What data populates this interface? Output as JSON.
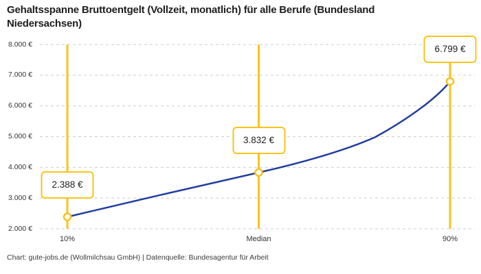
{
  "title": "Gehaltsspanne Bruttoentgelt (Vollzeit, monatlich) für alle Berufe (Bundesland Niedersachsen)",
  "footer": "Chart: gute-jobs.de (Wollmilchsau GmbH) | Datenquelle: Bundesagentur für Arbeit",
  "colors": {
    "accent_yellow": "#F9C31B",
    "line_blue": "#1F3D9E",
    "gridline_gray": "#CBCBCB"
  },
  "chart_data": {
    "type": "line",
    "title": "Gehaltsspanne Bruttoentgelt (Vollzeit, monatlich) für alle Berufe (Bundesland Niedersachsen)",
    "xlabel": "",
    "ylabel": "",
    "categories": [
      "10%",
      "Median",
      "90%"
    ],
    "values": [
      2388,
      3832,
      6799
    ],
    "value_labels": [
      "2.388 €",
      "3.832 €",
      "6.799 €"
    ],
    "y_tick_values": [
      8000,
      7000,
      6000,
      5000,
      4000,
      3000,
      2000
    ],
    "y_tick_labels": [
      "8.000 €",
      "7.000 €",
      "6.000 €",
      "5.000 €",
      "4.000 €",
      "3.000 €",
      "2.000 €"
    ],
    "ylim": [
      2000,
      8000
    ],
    "grid": "horizontal-dashed",
    "legend": "none",
    "annotations": "each percentile has a vertical yellow range line with an outlined value box above the data point"
  }
}
